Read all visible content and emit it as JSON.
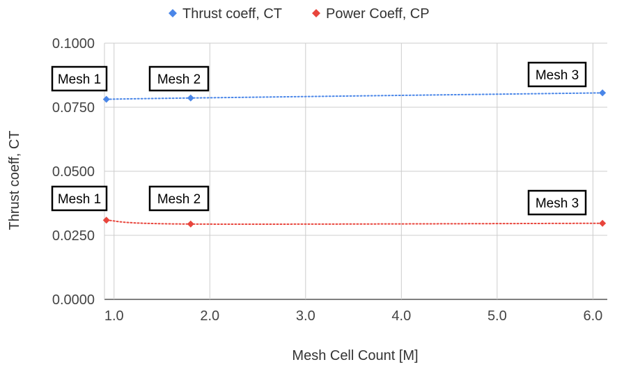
{
  "chart_data": {
    "type": "line",
    "title": "",
    "xlabel": "Mesh Cell Count [M]",
    "ylabel": "Thrust coeff, CT",
    "xlim": [
      0.9,
      6.15
    ],
    "ylim": [
      0.0,
      0.1
    ],
    "x_ticks": [
      "1.0",
      "2.0",
      "3.0",
      "4.0",
      "5.0",
      "6.0"
    ],
    "x_tick_values": [
      1,
      2,
      3,
      4,
      5,
      6
    ],
    "y_ticks": [
      "0.0000",
      "0.0250",
      "0.0500",
      "0.0750",
      "0.1000"
    ],
    "y_tick_values": [
      0,
      0.025,
      0.05,
      0.075,
      0.1
    ],
    "grid": true,
    "legend_position": "top-center",
    "series": [
      {
        "name": "Thrust coeff, CT",
        "color": "#4a86e8",
        "marker": "diamond",
        "line_style": "dotted",
        "x": [
          0.92,
          1.8,
          6.1
        ],
        "y": [
          0.0781,
          0.0786,
          0.0806
        ]
      },
      {
        "name": "Power Coeff, CP",
        "color": "#e8453c",
        "marker": "diamond",
        "line_style": "dotted",
        "x": [
          0.92,
          1.8,
          6.1
        ],
        "y": [
          0.0309,
          0.0294,
          0.0297
        ]
      }
    ],
    "annotations": [
      {
        "text": "Mesh 1",
        "series": 0,
        "point": 0,
        "position": "above"
      },
      {
        "text": "Mesh 2",
        "series": 0,
        "point": 1,
        "position": "above"
      },
      {
        "text": "Mesh 3",
        "series": 0,
        "point": 2,
        "position": "above-left"
      },
      {
        "text": "Mesh 1",
        "series": 1,
        "point": 0,
        "position": "above"
      },
      {
        "text": "Mesh 2",
        "series": 1,
        "point": 1,
        "position": "above"
      },
      {
        "text": "Mesh 3",
        "series": 1,
        "point": 2,
        "position": "above-left"
      }
    ]
  }
}
